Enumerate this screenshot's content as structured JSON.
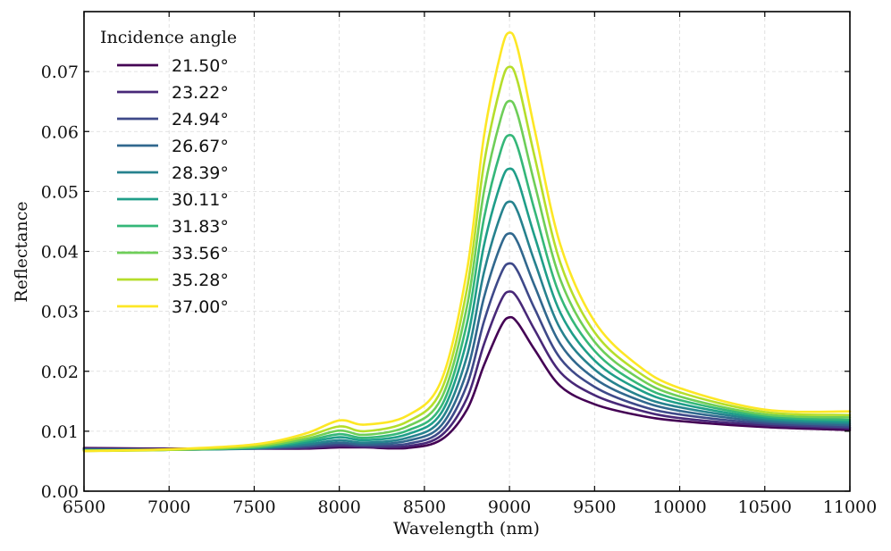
{
  "chart_data": {
    "type": "line",
    "title": "",
    "xlabel": "Wavelength (nm)",
    "ylabel": "Reflectance",
    "xlim": [
      6500,
      11000
    ],
    "ylim": [
      0.0,
      0.08
    ],
    "xticks": [
      6500,
      7000,
      7500,
      8000,
      8500,
      9000,
      9500,
      10000,
      10500,
      11000
    ],
    "xtick_labels": [
      "6500",
      "7000",
      "7500",
      "8000",
      "8500",
      "9000",
      "9500",
      "10000",
      "10500",
      "11000"
    ],
    "yticks": [
      0.0,
      0.01,
      0.02,
      0.03,
      0.04,
      0.05,
      0.06,
      0.07
    ],
    "ytick_labels": [
      "0.00",
      "0.01",
      "0.02",
      "0.03",
      "0.04",
      "0.05",
      "0.06",
      "0.07"
    ],
    "grid": true,
    "legend": {
      "title": "Incidence angle",
      "placement": "top-left"
    },
    "x": [
      6500,
      7000,
      7500,
      7800,
      8000,
      8150,
      8400,
      8600,
      8750,
      8850,
      8950,
      9000,
      9050,
      9150,
      9300,
      9500,
      9750,
      10000,
      10500,
      11000
    ],
    "series": [
      {
        "name": "21.50°",
        "color": "#440154",
        "values": [
          0.0072,
          0.0071,
          0.0071,
          0.0071,
          0.0073,
          0.0073,
          0.0072,
          0.0086,
          0.0136,
          0.021,
          0.0275,
          0.029,
          0.028,
          0.0235,
          0.0175,
          0.0145,
          0.0127,
          0.0117,
          0.0107,
          0.0102
        ]
      },
      {
        "name": "23.22°",
        "color": "#482878",
        "values": [
          0.0071,
          0.007,
          0.0071,
          0.0072,
          0.0075,
          0.0074,
          0.0075,
          0.0093,
          0.0155,
          0.0245,
          0.0318,
          0.0333,
          0.0321,
          0.0268,
          0.0198,
          0.016,
          0.0136,
          0.0122,
          0.011,
          0.0105
        ]
      },
      {
        "name": "24.94°",
        "color": "#3e4989",
        "values": [
          0.007,
          0.007,
          0.0071,
          0.0074,
          0.0078,
          0.0076,
          0.0079,
          0.0101,
          0.0177,
          0.0283,
          0.0363,
          0.038,
          0.0366,
          0.0303,
          0.0221,
          0.0174,
          0.0144,
          0.0128,
          0.0113,
          0.0107
        ]
      },
      {
        "name": "26.67°",
        "color": "#31688e",
        "values": [
          0.0069,
          0.0069,
          0.0071,
          0.0076,
          0.0081,
          0.0078,
          0.0084,
          0.011,
          0.02,
          0.0323,
          0.0411,
          0.043,
          0.0414,
          0.0341,
          0.0245,
          0.0188,
          0.0153,
          0.0134,
          0.0116,
          0.011
        ]
      },
      {
        "name": "28.39°",
        "color": "#26828e",
        "values": [
          0.0069,
          0.0069,
          0.0072,
          0.0078,
          0.0085,
          0.0081,
          0.0089,
          0.012,
          0.0225,
          0.0365,
          0.0462,
          0.0483,
          0.0465,
          0.0381,
          0.027,
          0.0203,
          0.0161,
          0.014,
          0.0119,
          0.0113
        ]
      },
      {
        "name": "30.11°",
        "color": "#1f9e89",
        "values": [
          0.0068,
          0.0069,
          0.0072,
          0.0081,
          0.009,
          0.0085,
          0.0095,
          0.0131,
          0.0252,
          0.041,
          0.0515,
          0.0538,
          0.0518,
          0.0423,
          0.0297,
          0.0218,
          0.0171,
          0.0146,
          0.0122,
          0.0116
        ]
      },
      {
        "name": "31.83°",
        "color": "#35b779",
        "values": [
          0.0068,
          0.0069,
          0.0073,
          0.0084,
          0.0095,
          0.0089,
          0.0101,
          0.0142,
          0.028,
          0.0455,
          0.0569,
          0.0594,
          0.0572,
          0.0466,
          0.0324,
          0.0234,
          0.018,
          0.0152,
          0.0125,
          0.0119
        ]
      },
      {
        "name": "33.56°",
        "color": "#6ece58",
        "values": [
          0.0068,
          0.0069,
          0.0074,
          0.0087,
          0.0101,
          0.0094,
          0.0108,
          0.0155,
          0.0308,
          0.05,
          0.0623,
          0.0651,
          0.0626,
          0.051,
          0.0352,
          0.0249,
          0.019,
          0.0158,
          0.0128,
          0.0123
        ]
      },
      {
        "name": "35.28°",
        "color": "#b5de2b",
        "values": [
          0.0067,
          0.0069,
          0.0076,
          0.0091,
          0.0108,
          0.01,
          0.0116,
          0.0169,
          0.0337,
          0.0546,
          0.0678,
          0.0708,
          0.0681,
          0.0555,
          0.038,
          0.0265,
          0.02,
          0.0165,
          0.0132,
          0.0127
        ]
      },
      {
        "name": "37.00°",
        "color": "#fde725",
        "values": [
          0.0067,
          0.007,
          0.0078,
          0.0096,
          0.0118,
          0.0111,
          0.0126,
          0.0185,
          0.0368,
          0.0592,
          0.0733,
          0.0765,
          0.0736,
          0.06,
          0.041,
          0.0283,
          0.0211,
          0.0172,
          0.0136,
          0.0133
        ]
      }
    ]
  }
}
